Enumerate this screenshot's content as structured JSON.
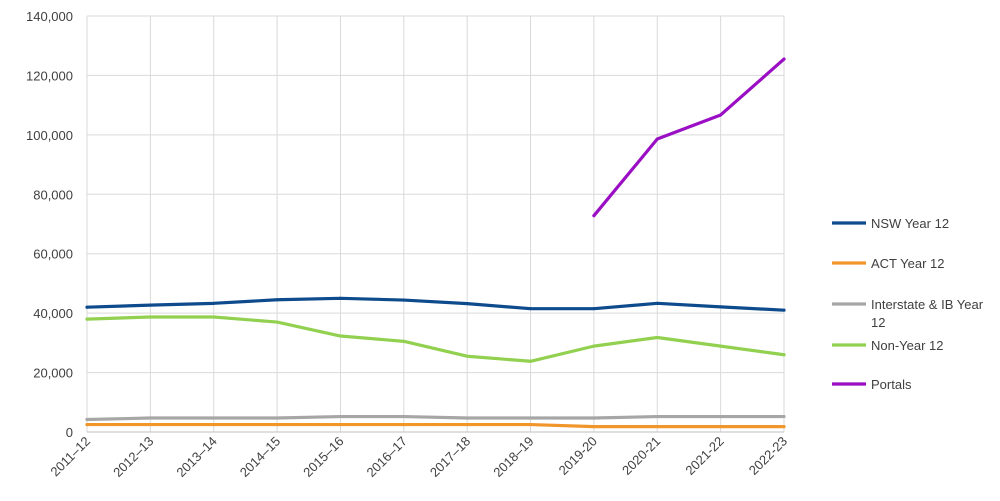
{
  "chart_data": {
    "type": "line",
    "categories": [
      "2011–12",
      "2012–13",
      "2013–14",
      "2014–15",
      "2015–16",
      "2016–17",
      "2017–18",
      "2018–19",
      "2019-20",
      "2020-21",
      "2021-22",
      "2022-23"
    ],
    "ylim": [
      0,
      140000
    ],
    "yticks": [
      "0",
      "20,000",
      "40,000",
      "60,000",
      "80,000",
      "100,000",
      "120,000",
      "140,000"
    ],
    "grid": true,
    "legend_position": "right",
    "series": [
      {
        "name": "NSW Year 12",
        "color": "#0d4b8c",
        "values": [
          42000,
          42700,
          43300,
          44500,
          45000,
          44400,
          43200,
          41500,
          41500,
          43300,
          42100,
          41000
        ]
      },
      {
        "name": "ACT Year 12",
        "color": "#f0962a",
        "values": [
          2500,
          2500,
          2500,
          2500,
          2500,
          2500,
          2500,
          2500,
          1800,
          1800,
          1800,
          1800
        ]
      },
      {
        "name": "Interstate & IB Year 12",
        "color": "#a6a6a6",
        "values": [
          4200,
          4700,
          4700,
          4700,
          5200,
          5200,
          4700,
          4700,
          4700,
          5200,
          5200,
          5200
        ]
      },
      {
        "name": "Non-Year 12",
        "color": "#92d050",
        "values": [
          38000,
          38700,
          38700,
          37000,
          32300,
          30500,
          25500,
          23800,
          28900,
          31800,
          28900,
          26000
        ]
      },
      {
        "name": "Portals",
        "color": "#9a0fc4",
        "values": [
          null,
          null,
          null,
          null,
          null,
          null,
          null,
          null,
          72800,
          98600,
          106700,
          125500
        ]
      }
    ]
  }
}
